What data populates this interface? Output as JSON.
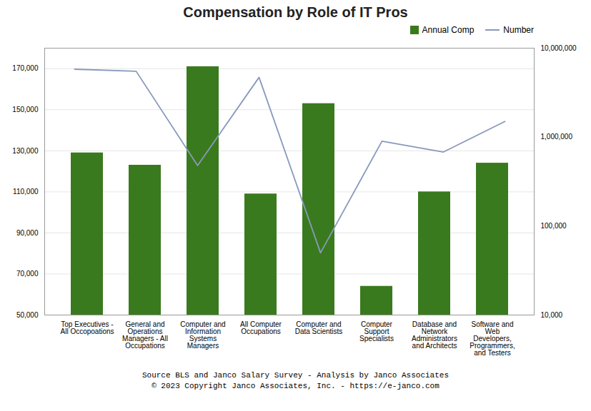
{
  "chart_data": {
    "type": "bar",
    "title": "Compensation by Role of IT Pros",
    "categories": [
      "Top Executives -\nAll Occopoations",
      "General and\nOperations\nManagers - All\nOccupations",
      "Computer and\nInformation\nSystems\nManagers",
      "All Computer\nOccupations",
      "Computer and\nData Scientists",
      "Computer\nSupport\nSpecialists",
      "Database and\nNetwork\nAdministrators\nand Architects",
      "Software and\nWeb\nDevelopers,\nProgrammers,\nand Testers"
    ],
    "series": [
      {
        "name": "Annual Comp",
        "type": "bar",
        "color": "#3a7a1e",
        "values": [
          129000,
          123000,
          171000,
          109000,
          153000,
          64000,
          110000,
          124000
        ]
      },
      {
        "name": "Number",
        "type": "line",
        "color": "#8899bb",
        "axis": "y2",
        "values": [
          5800000,
          5500000,
          480000,
          4700000,
          50000,
          900000,
          680000,
          1500000
        ]
      }
    ],
    "ylim": [
      50000,
      180000
    ],
    "yticks": [
      {
        "value": 50000,
        "label": "50,000"
      },
      {
        "value": 70000,
        "label": "70,000"
      },
      {
        "value": 90000,
        "label": "90,000"
      },
      {
        "value": 110000,
        "label": "110,000"
      },
      {
        "value": 130000,
        "label": "130,000"
      },
      {
        "value": 150000,
        "label": "150,000"
      },
      {
        "value": 170000,
        "label": "170,000"
      }
    ],
    "y2lim": [
      10000,
      10000000
    ],
    "y2ticks": [
      {
        "value": 10000,
        "label": "10,000"
      },
      {
        "value": 100000,
        "label": "100,000"
      },
      {
        "value": 1000000,
        "label": "1,000,000"
      },
      {
        "value": 10000000,
        "label": "10,000,000"
      }
    ],
    "log": "y2",
    "grid": true,
    "legend": "upper right",
    "annotations": [
      "Source BLS and Janco Salary Survey - Analysis  by Janco Associates",
      "© 2023 Copyright Janco Associates, Inc. - https://e-janco.com"
    ]
  }
}
